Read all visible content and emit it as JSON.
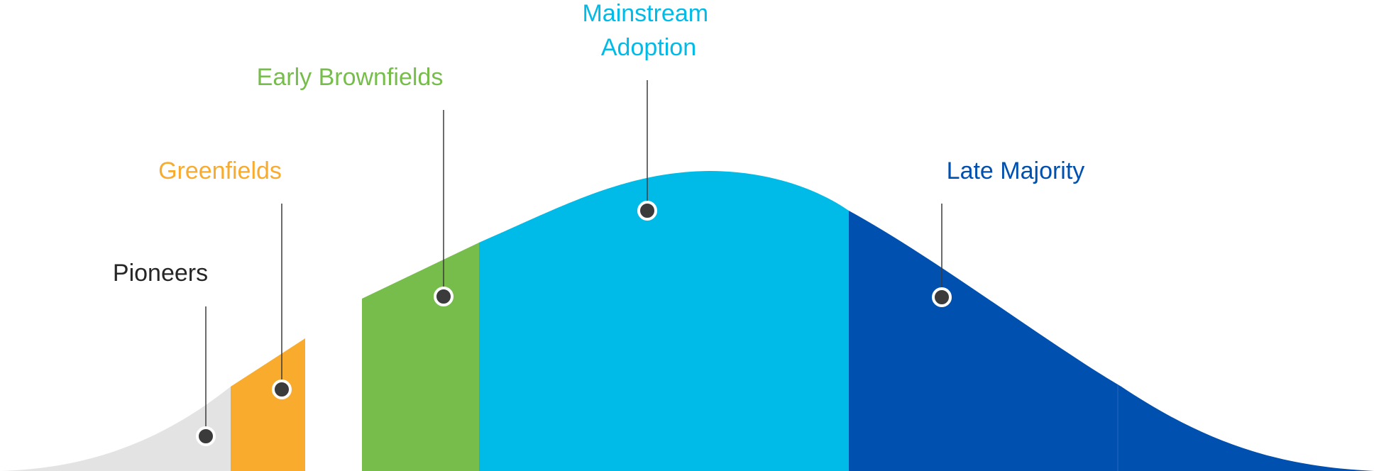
{
  "diagram": {
    "segments": [
      {
        "id": "pioneers",
        "label_lines": [
          "Pioneers"
        ],
        "color": "#e3e3e3",
        "label_color": "#262626"
      },
      {
        "id": "greenfields",
        "label_lines": [
          "Greenfields"
        ],
        "color": "#f9ab2e",
        "label_color": "#f9ab2e"
      },
      {
        "id": "early-brownfields",
        "label_lines": [
          "Early Brownfields"
        ],
        "color": "#77bd4b",
        "label_color": "#77bd4b"
      },
      {
        "id": "mainstream-adoption",
        "label_lines": [
          "Mainstream",
          "Adoption"
        ],
        "color": "#00bbe7",
        "label_color": "#00bbe7"
      },
      {
        "id": "late-majority",
        "label_lines": [
          "Late Majority"
        ],
        "color": "#0050b0",
        "label_color": "#0050b0"
      }
    ],
    "marker_color": "#3b3b3b",
    "leader_color": "#3b3b3b"
  }
}
